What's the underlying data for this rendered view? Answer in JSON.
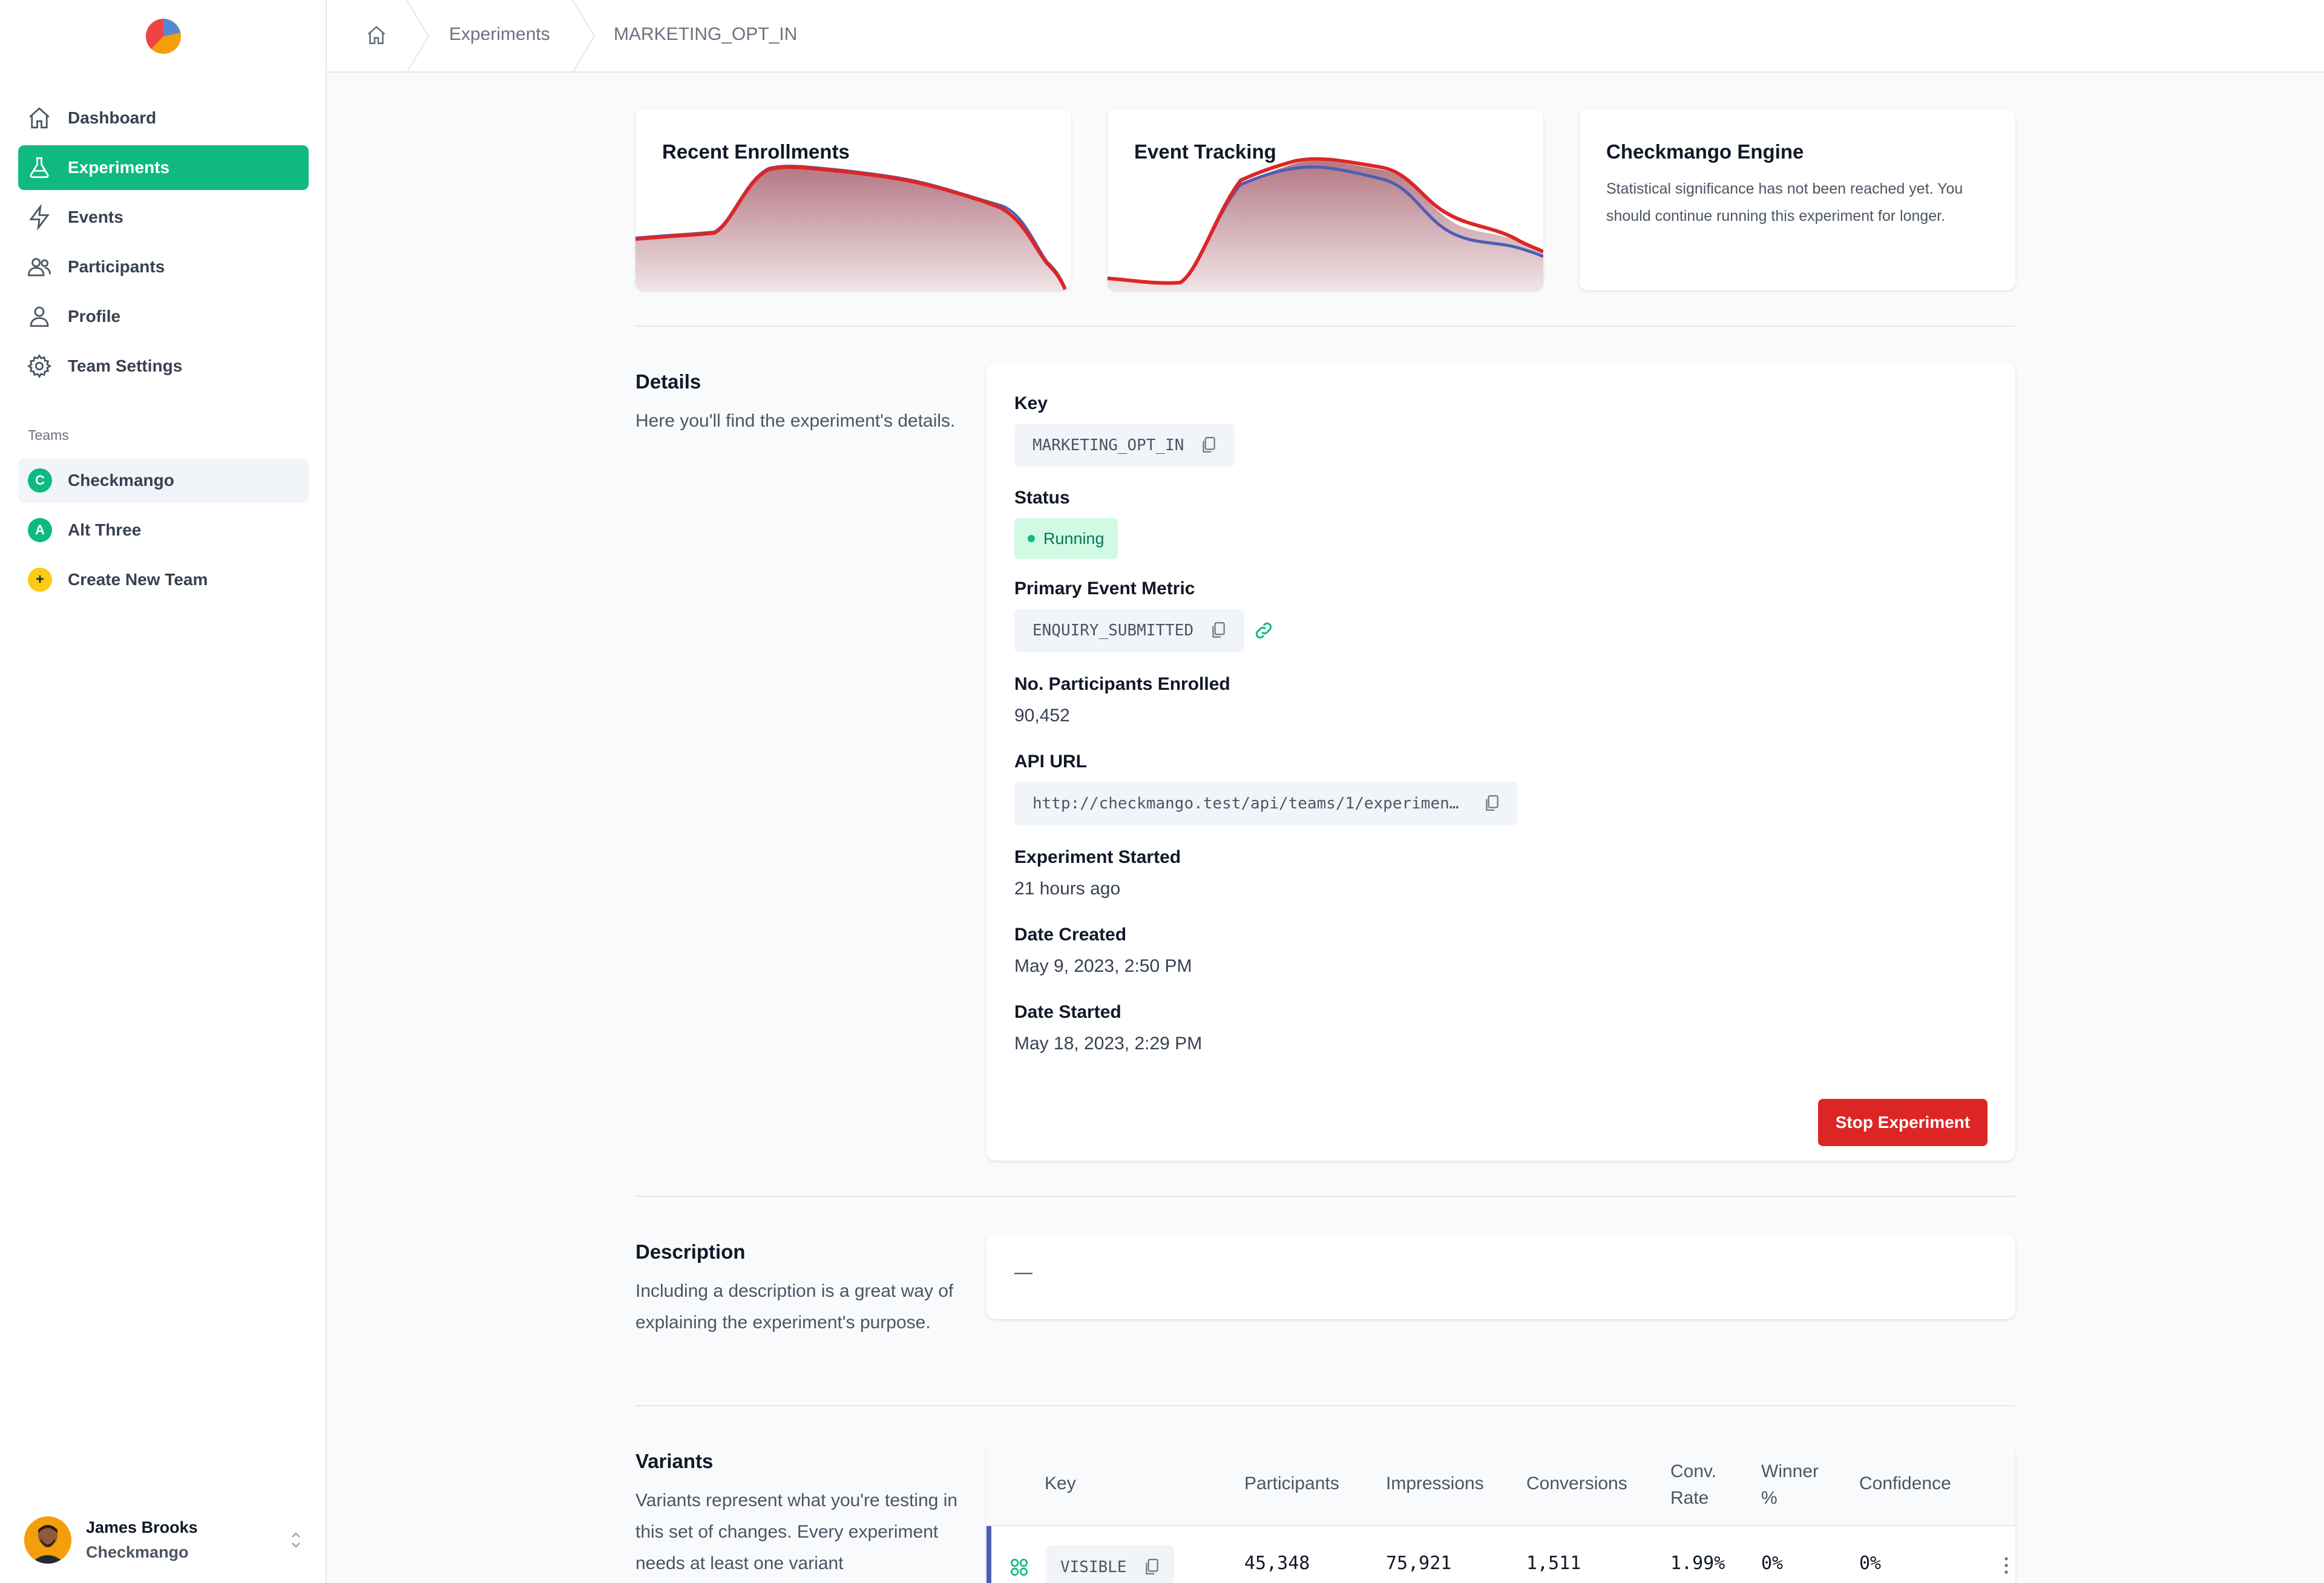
{
  "sidebar": {
    "nav": [
      {
        "label": "Dashboard",
        "icon": "home-icon"
      },
      {
        "label": "Experiments",
        "icon": "beaker-icon",
        "active": true
      },
      {
        "label": "Events",
        "icon": "bolt-icon"
      },
      {
        "label": "Participants",
        "icon": "users-icon"
      },
      {
        "label": "Profile",
        "icon": "user-icon"
      },
      {
        "label": "Team Settings",
        "icon": "gear-icon"
      }
    ],
    "teams_heading": "Teams",
    "teams": [
      {
        "badge": "C",
        "label": "Checkmango",
        "selected": true
      },
      {
        "badge": "A",
        "label": "Alt Three"
      },
      {
        "badge": "+",
        "label": "Create New Team"
      }
    ],
    "user": {
      "name": "James Brooks",
      "team": "Checkmango"
    }
  },
  "breadcrumb": [
    "Experiments",
    "MARKETING_OPT_IN"
  ],
  "cards": {
    "enrollments": {
      "title": "Recent Enrollments"
    },
    "events": {
      "title": "Event Tracking"
    },
    "engine": {
      "title": "Checkmango Engine",
      "text": "Statistical significance has not been reached yet. You should continue running this experiment for longer."
    }
  },
  "details": {
    "title": "Details",
    "desc": "Here you'll find the experiment's details.",
    "key_label": "Key",
    "key_value": "MARKETING_OPT_IN",
    "status_label": "Status",
    "status_value": "Running",
    "metric_label": "Primary Event Metric",
    "metric_value": "ENQUIRY_SUBMITTED",
    "participants_label": "No. Participants Enrolled",
    "participants_value": "90,452",
    "api_label": "API URL",
    "api_value": "http://checkmango.test/api/teams/1/experimen…",
    "started_label": "Experiment Started",
    "started_value": "21 hours ago",
    "created_label": "Date Created",
    "created_value": "May 9, 2023, 2:50 PM",
    "date_started_label": "Date Started",
    "date_started_value": "May 18, 2023, 2:29 PM",
    "stop_button": "Stop Experiment"
  },
  "description": {
    "title": "Description",
    "desc": "Including a description is a great way of explaining the experiment's purpose.",
    "value": "—"
  },
  "variants": {
    "title": "Variants",
    "desc": "Variants represent what you're testing in this set of changes. Every experiment needs at least one variant",
    "columns": [
      "Key",
      "Participants",
      "Impressions",
      "Conversions",
      "Conv. Rate",
      "Winner %",
      "Confidence"
    ],
    "rows": [
      {
        "key": "VISIBLE",
        "participants": "45,348",
        "impressions": "75,921",
        "conversions": "1,511",
        "conv_rate": "1.99%",
        "winner": "0%",
        "confidence": "0%"
      }
    ]
  },
  "colors": {
    "accent": "#10b981",
    "danger": "#dc2626",
    "chart_red": "#dc2626",
    "chart_blue": "#4f5fb0"
  }
}
